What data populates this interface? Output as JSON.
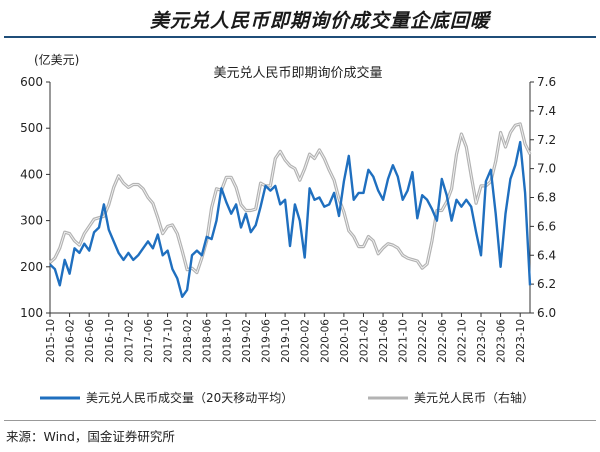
{
  "page": {
    "title": "美元兑人民币即期询价成交量企底回暖",
    "source": "来源：Wind，国金证券研究所"
  },
  "colors": {
    "volume": "#1f6fbf",
    "rate": "#b3b3b3",
    "axis": "#333333"
  },
  "chart_data": {
    "type": "line",
    "title": "美元兑人民币即期询价成交量",
    "y_left_label": "(亿美元)",
    "ylim_left": [
      100,
      600
    ],
    "yticks_left": [
      100,
      200,
      300,
      400,
      500,
      600
    ],
    "ylim_right": [
      6.0,
      7.6
    ],
    "yticks_right": [
      "6.0",
      "6.2",
      "6.4",
      "6.6",
      "6.8",
      "7.0",
      "7.2",
      "7.4",
      "7.6"
    ],
    "x_range": [
      "2015-10",
      "2023-12"
    ],
    "x_ticks": [
      "2015-10",
      "2016-02",
      "2016-06",
      "2016-10",
      "2017-02",
      "2017-06",
      "2017-10",
      "2018-02",
      "2018-06",
      "2018-10",
      "2019-02",
      "2019-06",
      "2019-10",
      "2020-02",
      "2020-06",
      "2020-10",
      "2021-02",
      "2021-06",
      "2021-10",
      "2022-02",
      "2022-06",
      "2022-10",
      "2023-02",
      "2023-06",
      "2023-10"
    ],
    "legend": "bottom",
    "series": [
      {
        "name": "美元兑人民币成交量（20天移动平均）",
        "axis": "left",
        "x": [
          "2015-10",
          "2015-11",
          "2015-12",
          "2016-01",
          "2016-02",
          "2016-03",
          "2016-04",
          "2016-05",
          "2016-06",
          "2016-07",
          "2016-08",
          "2016-09",
          "2016-10",
          "2016-11",
          "2016-12",
          "2017-01",
          "2017-02",
          "2017-03",
          "2017-04",
          "2017-05",
          "2017-06",
          "2017-07",
          "2017-08",
          "2017-09",
          "2017-10",
          "2017-11",
          "2017-12",
          "2018-01",
          "2018-02",
          "2018-03",
          "2018-04",
          "2018-05",
          "2018-06",
          "2018-07",
          "2018-08",
          "2018-09",
          "2018-10",
          "2018-11",
          "2018-12",
          "2019-01",
          "2019-02",
          "2019-03",
          "2019-04",
          "2019-05",
          "2019-06",
          "2019-07",
          "2019-08",
          "2019-09",
          "2019-10",
          "2019-11",
          "2019-12",
          "2020-01",
          "2020-02",
          "2020-03",
          "2020-04",
          "2020-05",
          "2020-06",
          "2020-07",
          "2020-08",
          "2020-09",
          "2020-10",
          "2020-11",
          "2020-12",
          "2021-01",
          "2021-02",
          "2021-03",
          "2021-04",
          "2021-05",
          "2021-06",
          "2021-07",
          "2021-08",
          "2021-09",
          "2021-10",
          "2021-11",
          "2021-12",
          "2022-01",
          "2022-02",
          "2022-03",
          "2022-04",
          "2022-05",
          "2022-06",
          "2022-07",
          "2022-08",
          "2022-09",
          "2022-10",
          "2022-11",
          "2022-12",
          "2023-01",
          "2023-02",
          "2023-03",
          "2023-04",
          "2023-05",
          "2023-06",
          "2023-07",
          "2023-08",
          "2023-09",
          "2023-10",
          "2023-11",
          "2023-12"
        ],
        "values": [
          205,
          195,
          160,
          215,
          185,
          240,
          230,
          250,
          235,
          275,
          285,
          335,
          280,
          255,
          230,
          215,
          230,
          215,
          225,
          240,
          255,
          240,
          270,
          225,
          235,
          195,
          175,
          135,
          150,
          225,
          235,
          225,
          265,
          260,
          300,
          370,
          340,
          315,
          335,
          285,
          315,
          275,
          290,
          330,
          375,
          365,
          375,
          335,
          345,
          245,
          335,
          300,
          220,
          370,
          345,
          350,
          330,
          335,
          360,
          310,
          385,
          440,
          345,
          360,
          360,
          410,
          395,
          365,
          345,
          390,
          420,
          395,
          345,
          365,
          405,
          305,
          355,
          345,
          325,
          300,
          390,
          355,
          300,
          345,
          330,
          345,
          330,
          275,
          225,
          385,
          410,
          315,
          200,
          315,
          390,
          420,
          470,
          360,
          160
        ]
      },
      {
        "name": "美元兑人民币（右轴）",
        "axis": "right",
        "x": [
          "2015-10",
          "2015-11",
          "2015-12",
          "2016-01",
          "2016-02",
          "2016-03",
          "2016-04",
          "2016-05",
          "2016-06",
          "2016-07",
          "2016-08",
          "2016-09",
          "2016-10",
          "2016-11",
          "2016-12",
          "2017-01",
          "2017-02",
          "2017-03",
          "2017-04",
          "2017-05",
          "2017-06",
          "2017-07",
          "2017-08",
          "2017-09",
          "2017-10",
          "2017-11",
          "2017-12",
          "2018-01",
          "2018-02",
          "2018-03",
          "2018-04",
          "2018-05",
          "2018-06",
          "2018-07",
          "2018-08",
          "2018-09",
          "2018-10",
          "2018-11",
          "2018-12",
          "2019-01",
          "2019-02",
          "2019-03",
          "2019-04",
          "2019-05",
          "2019-06",
          "2019-07",
          "2019-08",
          "2019-09",
          "2019-10",
          "2019-11",
          "2019-12",
          "2020-01",
          "2020-02",
          "2020-03",
          "2020-04",
          "2020-05",
          "2020-06",
          "2020-07",
          "2020-08",
          "2020-09",
          "2020-10",
          "2020-11",
          "2020-12",
          "2021-01",
          "2021-02",
          "2021-03",
          "2021-04",
          "2021-05",
          "2021-06",
          "2021-07",
          "2021-08",
          "2021-09",
          "2021-10",
          "2021-11",
          "2021-12",
          "2022-01",
          "2022-02",
          "2022-03",
          "2022-04",
          "2022-05",
          "2022-06",
          "2022-07",
          "2022-08",
          "2022-09",
          "2022-10",
          "2022-11",
          "2022-12",
          "2023-01",
          "2023-02",
          "2023-03",
          "2023-04",
          "2023-05",
          "2023-06",
          "2023-07",
          "2023-08",
          "2023-09",
          "2023-10",
          "2023-11",
          "2023-12"
        ],
        "values": [
          6.35,
          6.38,
          6.45,
          6.56,
          6.55,
          6.5,
          6.47,
          6.55,
          6.6,
          6.65,
          6.66,
          6.67,
          6.75,
          6.87,
          6.95,
          6.9,
          6.87,
          6.89,
          6.89,
          6.86,
          6.8,
          6.76,
          6.66,
          6.55,
          6.6,
          6.61,
          6.55,
          6.43,
          6.3,
          6.31,
          6.28,
          6.38,
          6.5,
          6.73,
          6.86,
          6.85,
          6.94,
          6.94,
          6.87,
          6.75,
          6.71,
          6.71,
          6.72,
          6.9,
          6.88,
          6.88,
          7.07,
          7.12,
          7.06,
          7.02,
          7.0,
          6.92,
          7.0,
          7.1,
          7.07,
          7.13,
          7.07,
          6.99,
          6.92,
          6.79,
          6.7,
          6.57,
          6.53,
          6.46,
          6.46,
          6.53,
          6.5,
          6.41,
          6.45,
          6.48,
          6.47,
          6.45,
          6.4,
          6.38,
          6.37,
          6.36,
          6.31,
          6.34,
          6.5,
          6.71,
          6.71,
          6.77,
          6.86,
          7.1,
          7.24,
          7.15,
          6.95,
          6.76,
          6.88,
          6.88,
          6.91,
          7.05,
          7.25,
          7.15,
          7.25,
          7.3,
          7.31,
          7.17,
          7.1
        ]
      }
    ]
  }
}
